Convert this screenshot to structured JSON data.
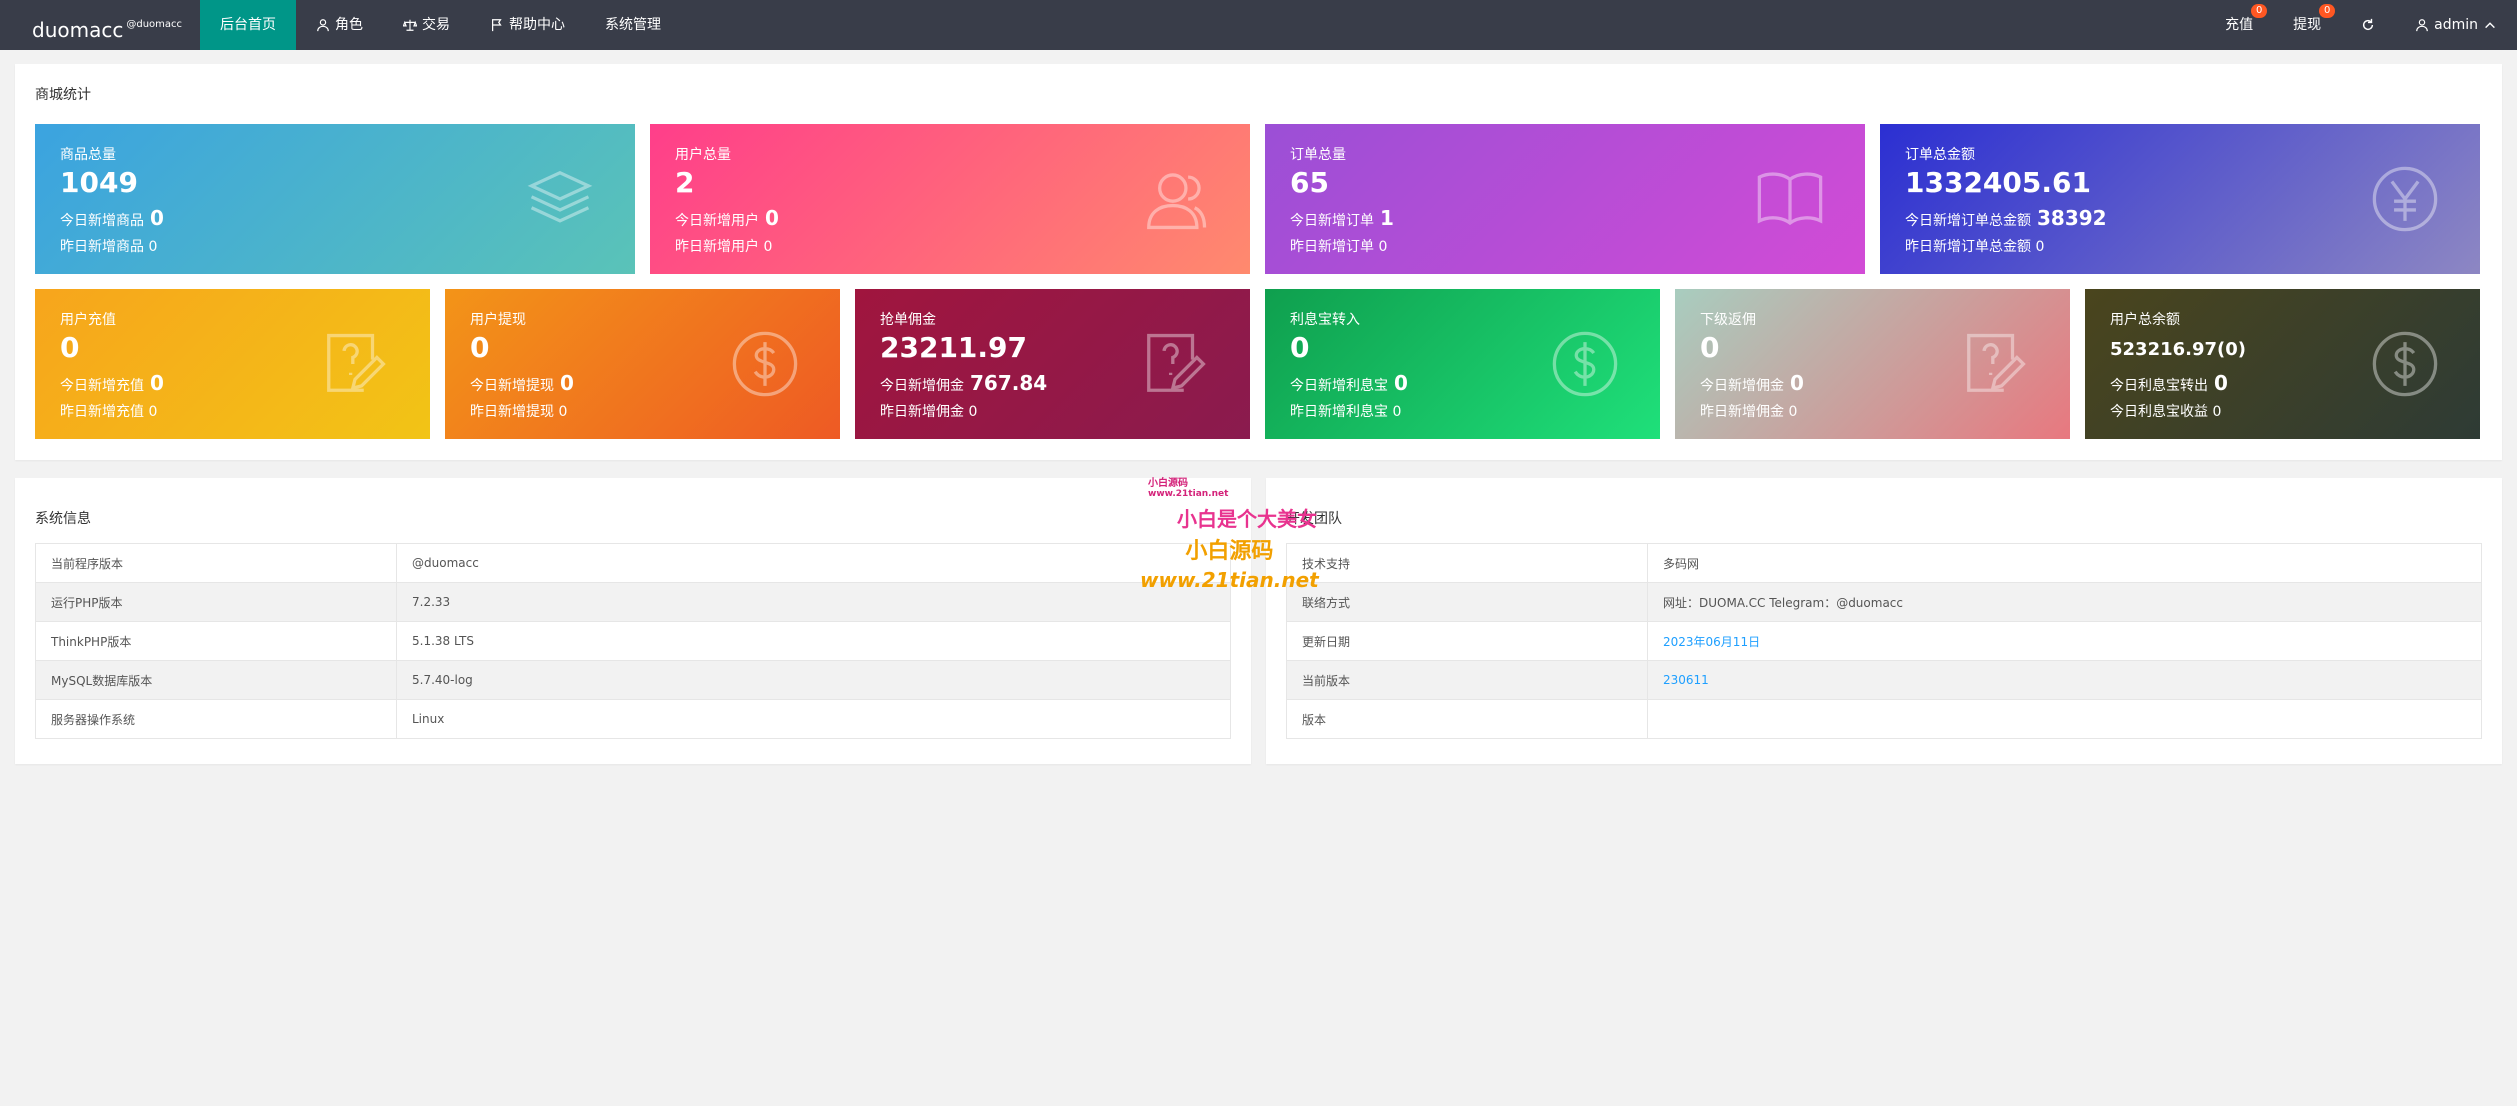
{
  "header": {
    "brand": "duomacc",
    "brand_sup": "@duomacc",
    "nav": [
      {
        "label": "后台首页",
        "icon": ""
      },
      {
        "label": "角色",
        "icon": "user-icon"
      },
      {
        "label": "交易",
        "icon": "scale-icon"
      },
      {
        "label": "帮助中心",
        "icon": "flag-icon"
      },
      {
        "label": "系统管理",
        "icon": ""
      }
    ],
    "right": {
      "recharge": "充值",
      "recharge_badge": "0",
      "withdraw": "提现",
      "withdraw_badge": "0",
      "user": "admin"
    }
  },
  "stats_panel": {
    "title": "商城统计",
    "row1": [
      {
        "label": "商品总量",
        "value": "1049",
        "today": "今日新增商品",
        "today_val": "0",
        "yday": "昨日新增商品",
        "yday_val": "0",
        "icon": "layers-icon"
      },
      {
        "label": "用户总量",
        "value": "2",
        "today": "今日新增用户",
        "today_val": "0",
        "yday": "昨日新增用户",
        "yday_val": "0",
        "icon": "users-icon"
      },
      {
        "label": "订单总量",
        "value": "65",
        "today": "今日新增订单",
        "today_val": "1",
        "yday": "昨日新增订单",
        "yday_val": "0",
        "icon": "book-icon"
      },
      {
        "label": "订单总金额",
        "value": "1332405.61",
        "today": "今日新增订单总金额",
        "today_val": "38392",
        "yday": "昨日新增订单总金额",
        "yday_val": "0",
        "icon": "yen-icon"
      }
    ],
    "row2": [
      {
        "label": "用户充值",
        "value": "0",
        "today": "今日新增充值",
        "today_val": "0",
        "yday": "昨日新增充值",
        "yday_val": "0",
        "icon": "edit-icon"
      },
      {
        "label": "用户提现",
        "value": "0",
        "today": "今日新增提现",
        "today_val": "0",
        "yday": "昨日新增提现",
        "yday_val": "0",
        "icon": "dollar-icon"
      },
      {
        "label": "抢单佣金",
        "value": "23211.97",
        "today": "今日新增佣金",
        "today_val": "767.84",
        "yday": "昨日新增佣金",
        "yday_val": "0",
        "icon": "edit-icon"
      },
      {
        "label": "利息宝转入",
        "value": "0",
        "today": "今日新增利息宝",
        "today_val": "0",
        "yday": "昨日新增利息宝",
        "yday_val": "0",
        "icon": "dollar-icon"
      },
      {
        "label": "下级返佣",
        "value": "0",
        "today": "今日新增佣金",
        "today_val": "0",
        "yday": "昨日新增佣金",
        "yday_val": "0",
        "icon": "edit-icon"
      },
      {
        "label": "用户总余额",
        "value": "523216.97(0)",
        "today": "今日利息宝转出",
        "today_val": "0",
        "yday": "今日利息宝收益",
        "yday_val": "0",
        "icon": "dollar-icon"
      }
    ]
  },
  "sysinfo": {
    "title": "系统信息",
    "rows": [
      [
        "当前程序版本",
        "@duomacc"
      ],
      [
        "运行PHP版本",
        "7.2.33"
      ],
      [
        "ThinkPHP版本",
        "5.1.38 LTS"
      ],
      [
        "MySQL数据库版本",
        "5.7.40-log"
      ],
      [
        "服务器操作系统",
        "Linux"
      ]
    ]
  },
  "devteam": {
    "title": "开发团队",
    "rows": [
      [
        "技术支持",
        "多码网"
      ],
      [
        "联络方式",
        "网址：DUOMA.CC Telegram：@duomacc"
      ],
      [
        "更新日期",
        "2023年06月11日"
      ],
      [
        "当前版本",
        "230611"
      ],
      [
        "版本",
        ""
      ]
    ]
  },
  "watermark": {
    "a": "小白源码",
    "b": "www.21tian.net",
    "c": "小白是个大美女",
    "d": "小白源码",
    "e": "www.21tian.net"
  },
  "colors": {
    "topbar": "#393d49",
    "active": "#009688",
    "badge": "#ff5722",
    "link": "#1e9fff"
  }
}
